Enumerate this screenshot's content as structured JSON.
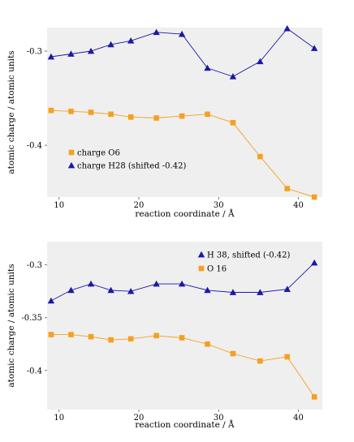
{
  "chart_data": [
    {
      "type": "line",
      "xlabel": "reaction coordinate / Å",
      "ylabel": "atomic charge / atomic units",
      "xlim": [
        8.5,
        43
      ],
      "ylim": [
        -0.455,
        -0.275
      ],
      "xticks": [
        10,
        20,
        30,
        40
      ],
      "yticks": [
        -0.3,
        -0.4
      ],
      "tick_labels_x": [
        "10",
        "20",
        "30",
        "40"
      ],
      "tick_labels_y": [
        "-0.3",
        "-0.4"
      ],
      "grid": false,
      "legend_position": "lower-left",
      "series": [
        {
          "name": "charge O6",
          "color": "#f5a020",
          "marker": "square",
          "x": [
            9.0,
            11.5,
            14.0,
            16.5,
            19.0,
            22.2,
            25.4,
            28.6,
            31.8,
            35.2,
            38.6,
            42.0
          ],
          "y": [
            -0.363,
            -0.364,
            -0.365,
            -0.367,
            -0.37,
            -0.371,
            -0.369,
            -0.367,
            -0.376,
            -0.412,
            -0.446,
            -0.455
          ]
        },
        {
          "name": "charge H28 (shifted -0.42)",
          "color": "#1a1aa6",
          "marker": "triangle",
          "x": [
            9.0,
            11.5,
            14.0,
            16.5,
            19.0,
            22.2,
            25.4,
            28.6,
            31.8,
            35.2,
            38.6,
            42.0
          ],
          "y": [
            -0.306,
            -0.303,
            -0.3,
            -0.293,
            -0.289,
            -0.28,
            -0.282,
            -0.318,
            -0.327,
            -0.311,
            -0.276,
            -0.297
          ]
        }
      ]
    },
    {
      "type": "line",
      "xlabel": "reaction coordinate / Å",
      "ylabel": "atomic charge / atomic units",
      "xlim": [
        8.5,
        43
      ],
      "ylim": [
        -0.437,
        -0.278
      ],
      "xticks": [
        10,
        20,
        30,
        40
      ],
      "yticks": [
        -0.3,
        -0.35,
        -0.4
      ],
      "tick_labels_x": [
        "10",
        "20",
        "30",
        "40"
      ],
      "tick_labels_y": [
        "-0.3",
        "-0.35",
        "-0.4"
      ],
      "grid": false,
      "legend_position": "top-right",
      "series": [
        {
          "name": "H 38, shifted (-0.42)",
          "color": "#1a1aa6",
          "marker": "triangle",
          "x": [
            9.0,
            11.5,
            14.0,
            16.5,
            19.0,
            22.2,
            25.4,
            28.6,
            31.8,
            35.2,
            38.6,
            42.0
          ],
          "y": [
            -0.334,
            -0.324,
            -0.318,
            -0.324,
            -0.325,
            -0.318,
            -0.318,
            -0.324,
            -0.326,
            -0.326,
            -0.323,
            -0.298
          ]
        },
        {
          "name": "O 16",
          "color": "#f5a020",
          "marker": "square",
          "x": [
            9.0,
            11.5,
            14.0,
            16.5,
            19.0,
            22.2,
            25.4,
            28.6,
            31.8,
            35.2,
            38.6,
            42.0
          ],
          "y": [
            -0.366,
            -0.366,
            -0.368,
            -0.371,
            -0.37,
            -0.367,
            -0.369,
            -0.375,
            -0.384,
            -0.391,
            -0.387,
            -0.425
          ]
        }
      ]
    }
  ]
}
